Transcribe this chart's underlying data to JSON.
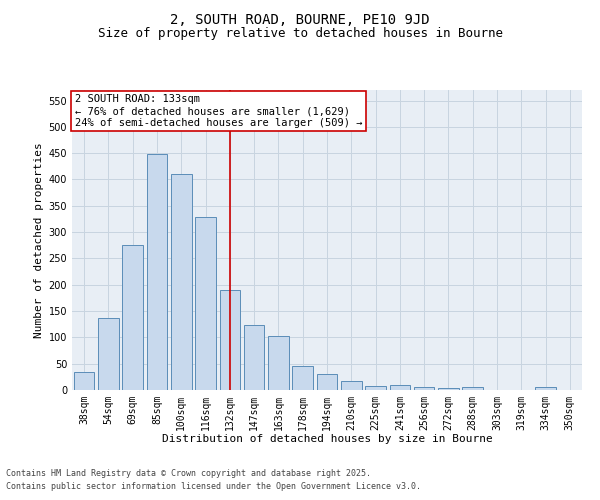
{
  "title1": "2, SOUTH ROAD, BOURNE, PE10 9JD",
  "title2": "Size of property relative to detached houses in Bourne",
  "xlabel": "Distribution of detached houses by size in Bourne",
  "ylabel": "Number of detached properties",
  "categories": [
    "38sqm",
    "54sqm",
    "69sqm",
    "85sqm",
    "100sqm",
    "116sqm",
    "132sqm",
    "147sqm",
    "163sqm",
    "178sqm",
    "194sqm",
    "210sqm",
    "225sqm",
    "241sqm",
    "256sqm",
    "272sqm",
    "288sqm",
    "303sqm",
    "319sqm",
    "334sqm",
    "350sqm"
  ],
  "values": [
    35,
    136,
    275,
    449,
    411,
    328,
    190,
    124,
    103,
    46,
    30,
    18,
    8,
    9,
    5,
    4,
    5,
    0,
    0,
    6,
    0
  ],
  "bar_color": "#c8d9ed",
  "bar_edge_color": "#5b8db8",
  "reference_line_x": 6,
  "vline_color": "#cc0000",
  "annotation_line1": "2 SOUTH ROAD: 133sqm",
  "annotation_line2": "← 76% of detached houses are smaller (1,629)",
  "annotation_line3": "24% of semi-detached houses are larger (509) →",
  "annotation_box_color": "#ffffff",
  "annotation_box_edge": "#cc0000",
  "ylim": [
    0,
    570
  ],
  "yticks": [
    0,
    50,
    100,
    150,
    200,
    250,
    300,
    350,
    400,
    450,
    500,
    550
  ],
  "grid_color": "#c8d4e0",
  "background_color": "#e8eef5",
  "footer1": "Contains HM Land Registry data © Crown copyright and database right 2025.",
  "footer2": "Contains public sector information licensed under the Open Government Licence v3.0.",
  "title1_fontsize": 10,
  "title2_fontsize": 9,
  "xlabel_fontsize": 8,
  "ylabel_fontsize": 8,
  "tick_fontsize": 7,
  "annotation_fontsize": 7.5,
  "footer_fontsize": 6
}
